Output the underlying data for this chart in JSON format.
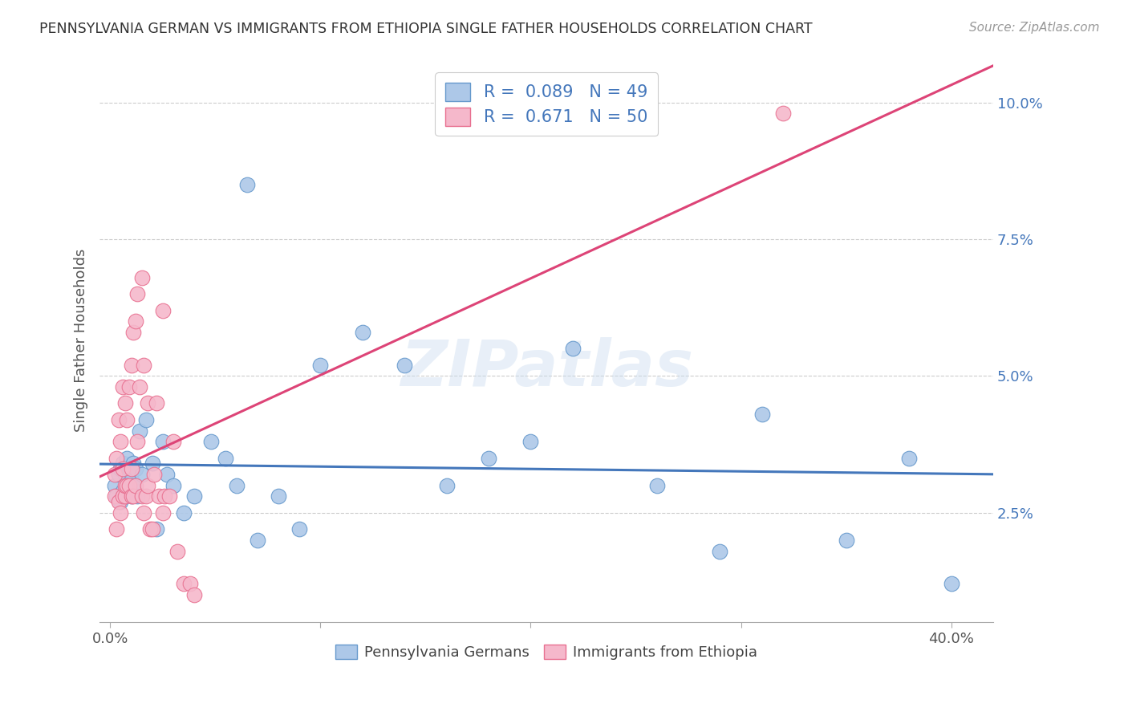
{
  "title": "PENNSYLVANIA GERMAN VS IMMIGRANTS FROM ETHIOPIA SINGLE FATHER HOUSEHOLDS CORRELATION CHART",
  "source": "Source: ZipAtlas.com",
  "xlabel_ticks_shown": [
    "0.0%",
    "40.0%"
  ],
  "xlabel_tick_vals_shown": [
    0.0,
    0.4
  ],
  "xlabel_minor_ticks": [
    0.1,
    0.2,
    0.3
  ],
  "ylabel": "Single Father Households",
  "ylabel_ticks": [
    "2.5%",
    "5.0%",
    "7.5%",
    "10.0%"
  ],
  "ylabel_tick_vals": [
    0.025,
    0.05,
    0.075,
    0.1
  ],
  "xlim": [
    -0.005,
    0.42
  ],
  "ylim": [
    0.005,
    0.108
  ],
  "legend_R_blue": "R = 0.089",
  "legend_N_blue": "N = 49",
  "legend_R_pink": "R =  0.671",
  "legend_N_pink": "N = 50",
  "legend_label_blue_bottom": "Pennsylvania Germans",
  "legend_label_pink_bottom": "Immigrants from Ethiopia",
  "blue_fill_color": "#adc8e8",
  "pink_fill_color": "#f5b8cb",
  "blue_edge_color": "#6699cc",
  "pink_edge_color": "#e87090",
  "blue_line_color": "#4477bb",
  "pink_line_color": "#dd4477",
  "watermark": "ZIPatlas",
  "grid_color": "#cccccc",
  "blue_scatter_x": [
    0.002,
    0.003,
    0.004,
    0.005,
    0.005,
    0.006,
    0.006,
    0.007,
    0.007,
    0.008,
    0.008,
    0.009,
    0.009,
    0.01,
    0.01,
    0.011,
    0.011,
    0.012,
    0.013,
    0.014,
    0.015,
    0.017,
    0.02,
    0.022,
    0.025,
    0.027,
    0.03,
    0.035,
    0.04,
    0.048,
    0.055,
    0.06,
    0.065,
    0.07,
    0.08,
    0.09,
    0.1,
    0.12,
    0.14,
    0.16,
    0.18,
    0.2,
    0.22,
    0.26,
    0.29,
    0.31,
    0.35,
    0.38,
    0.4
  ],
  "blue_scatter_y": [
    0.03,
    0.028,
    0.032,
    0.027,
    0.033,
    0.029,
    0.034,
    0.028,
    0.032,
    0.03,
    0.035,
    0.029,
    0.033,
    0.028,
    0.031,
    0.03,
    0.034,
    0.033,
    0.028,
    0.04,
    0.032,
    0.042,
    0.034,
    0.022,
    0.038,
    0.032,
    0.03,
    0.025,
    0.028,
    0.038,
    0.035,
    0.03,
    0.085,
    0.02,
    0.028,
    0.022,
    0.052,
    0.058,
    0.052,
    0.03,
    0.035,
    0.038,
    0.055,
    0.03,
    0.018,
    0.043,
    0.02,
    0.035,
    0.012
  ],
  "pink_scatter_x": [
    0.002,
    0.002,
    0.003,
    0.003,
    0.004,
    0.004,
    0.005,
    0.005,
    0.006,
    0.006,
    0.006,
    0.007,
    0.007,
    0.007,
    0.008,
    0.008,
    0.009,
    0.009,
    0.01,
    0.01,
    0.01,
    0.011,
    0.011,
    0.012,
    0.012,
    0.013,
    0.013,
    0.014,
    0.015,
    0.015,
    0.016,
    0.016,
    0.017,
    0.018,
    0.018,
    0.019,
    0.02,
    0.021,
    0.022,
    0.023,
    0.025,
    0.025,
    0.026,
    0.028,
    0.03,
    0.032,
    0.035,
    0.038,
    0.04,
    0.32
  ],
  "pink_scatter_y": [
    0.028,
    0.032,
    0.022,
    0.035,
    0.027,
    0.042,
    0.025,
    0.038,
    0.028,
    0.033,
    0.048,
    0.028,
    0.03,
    0.045,
    0.03,
    0.042,
    0.03,
    0.048,
    0.028,
    0.033,
    0.052,
    0.028,
    0.058,
    0.03,
    0.06,
    0.038,
    0.065,
    0.048,
    0.028,
    0.068,
    0.025,
    0.052,
    0.028,
    0.03,
    0.045,
    0.022,
    0.022,
    0.032,
    0.045,
    0.028,
    0.025,
    0.062,
    0.028,
    0.028,
    0.038,
    0.018,
    0.012,
    0.012,
    0.01,
    0.098
  ]
}
